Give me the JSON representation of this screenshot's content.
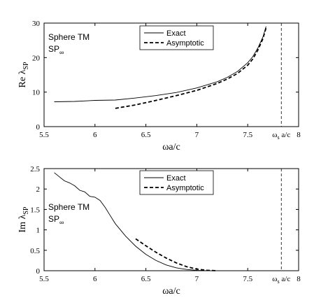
{
  "chart_data": [
    {
      "type": "line",
      "ylabel_main": "Re λ",
      "ylabel_sub": "SP",
      "xlabel": "ωa/c",
      "xlim": [
        5.5,
        8
      ],
      "ylim": [
        0,
        30
      ],
      "xticks": [
        "5.5",
        "6",
        "6.5",
        "7",
        "7.5",
        "8"
      ],
      "yticks": [
        "0",
        "10",
        "20",
        "30"
      ],
      "annotation_line1": "Sphere TM",
      "annotation_line2_main": "SP",
      "annotation_line2_sub": "∞",
      "marker_label_main": "ω",
      "marker_label_sub": "s",
      "marker_label_rest": " a/c",
      "marker_x": 7.83,
      "legend_position": "top-center",
      "grid": false,
      "series": [
        {
          "name": "Exact",
          "style": "solid",
          "x": [
            5.6,
            5.8,
            6.0,
            6.2,
            6.4,
            6.6,
            6.8,
            7.0,
            7.2,
            7.3,
            7.4,
            7.5,
            7.55,
            7.6,
            7.65,
            7.68
          ],
          "y": [
            7.2,
            7.3,
            7.6,
            7.7,
            8.3,
            9.0,
            9.9,
            11.2,
            13.0,
            14.3,
            16.0,
            18.5,
            20.3,
            22.8,
            26.0,
            29.0
          ]
        },
        {
          "name": "Asymptotic",
          "style": "dashed",
          "x": [
            6.2,
            6.4,
            6.6,
            6.8,
            7.0,
            7.2,
            7.3,
            7.4,
            7.5,
            7.55,
            7.6,
            7.65,
            7.68
          ],
          "y": [
            5.3,
            6.3,
            7.6,
            9.0,
            10.5,
            12.5,
            13.8,
            15.4,
            17.8,
            19.6,
            22.2,
            25.5,
            28.6
          ]
        }
      ]
    },
    {
      "type": "line",
      "ylabel_main": "Im λ",
      "ylabel_sub": "SP",
      "xlabel": "ωa/c",
      "xlim": [
        5.5,
        8
      ],
      "ylim": [
        0,
        2.5
      ],
      "xticks": [
        "5.5",
        "6",
        "6.5",
        "7",
        "7.5",
        "8"
      ],
      "yticks": [
        "0",
        "0.5",
        "1",
        "1.5",
        "2",
        "2.5"
      ],
      "annotation_line1": "Sphere TM",
      "annotation_line2_main": "SP",
      "annotation_line2_sub": "∞",
      "marker_label_main": "ω",
      "marker_label_sub": "s",
      "marker_label_rest": " a/c",
      "marker_x": 7.83,
      "legend_position": "top-center",
      "grid": false,
      "series": [
        {
          "name": "Exact",
          "style": "solid",
          "x": [
            5.6,
            5.65,
            5.7,
            5.75,
            5.8,
            5.85,
            5.9,
            5.95,
            6.0,
            6.05,
            6.1,
            6.15,
            6.2,
            6.3,
            6.4,
            6.5,
            6.6,
            6.7,
            6.8,
            6.9,
            7.0,
            7.1,
            7.3,
            7.6,
            7.8
          ],
          "y": [
            2.4,
            2.3,
            2.2,
            2.15,
            2.08,
            1.97,
            1.93,
            1.82,
            1.8,
            1.72,
            1.55,
            1.35,
            1.15,
            0.85,
            0.6,
            0.4,
            0.25,
            0.14,
            0.07,
            0.03,
            0.01,
            0.0,
            0.0,
            0.0,
            0.0
          ]
        },
        {
          "name": "Asymptotic",
          "style": "dashed",
          "x": [
            6.4,
            6.5,
            6.6,
            6.7,
            6.8,
            6.9,
            7.0,
            7.1,
            7.2
          ],
          "y": [
            0.78,
            0.61,
            0.45,
            0.31,
            0.19,
            0.1,
            0.04,
            0.01,
            0.0
          ]
        }
      ]
    }
  ]
}
